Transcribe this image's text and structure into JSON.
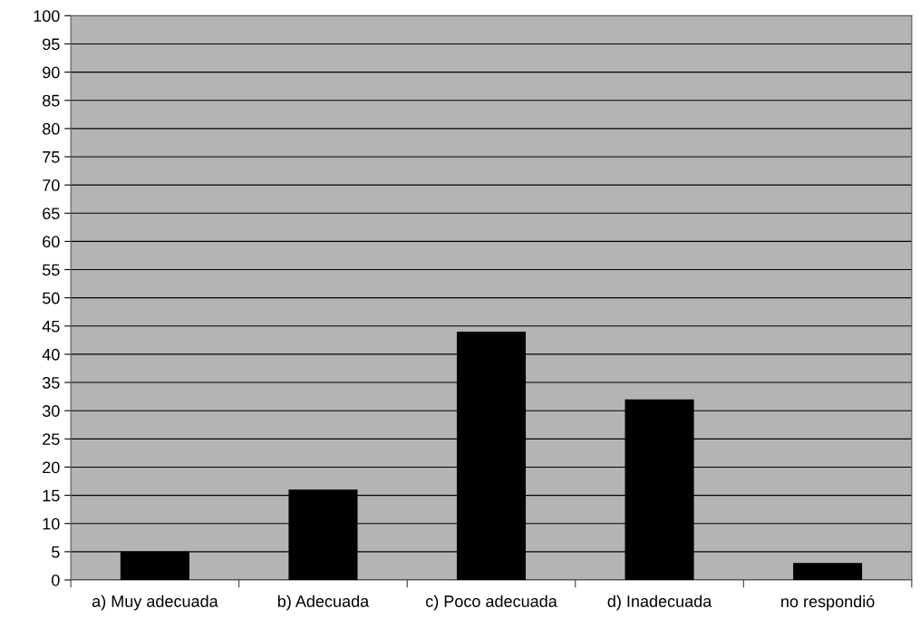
{
  "chart_data": {
    "type": "bar",
    "categories": [
      "a) Muy adecuada",
      "b) Adecuada",
      "c) Poco adecuada",
      "d) Inadecuada",
      "no respondió"
    ],
    "values": [
      5,
      16,
      44,
      32,
      3
    ],
    "color": "#000000",
    "ylim": [
      0,
      100
    ],
    "yticks": [
      0,
      5,
      10,
      15,
      20,
      25,
      30,
      35,
      40,
      45,
      50,
      55,
      60,
      65,
      70,
      75,
      80,
      85,
      90,
      95,
      100
    ],
    "grid": "y",
    "legend": false
  }
}
